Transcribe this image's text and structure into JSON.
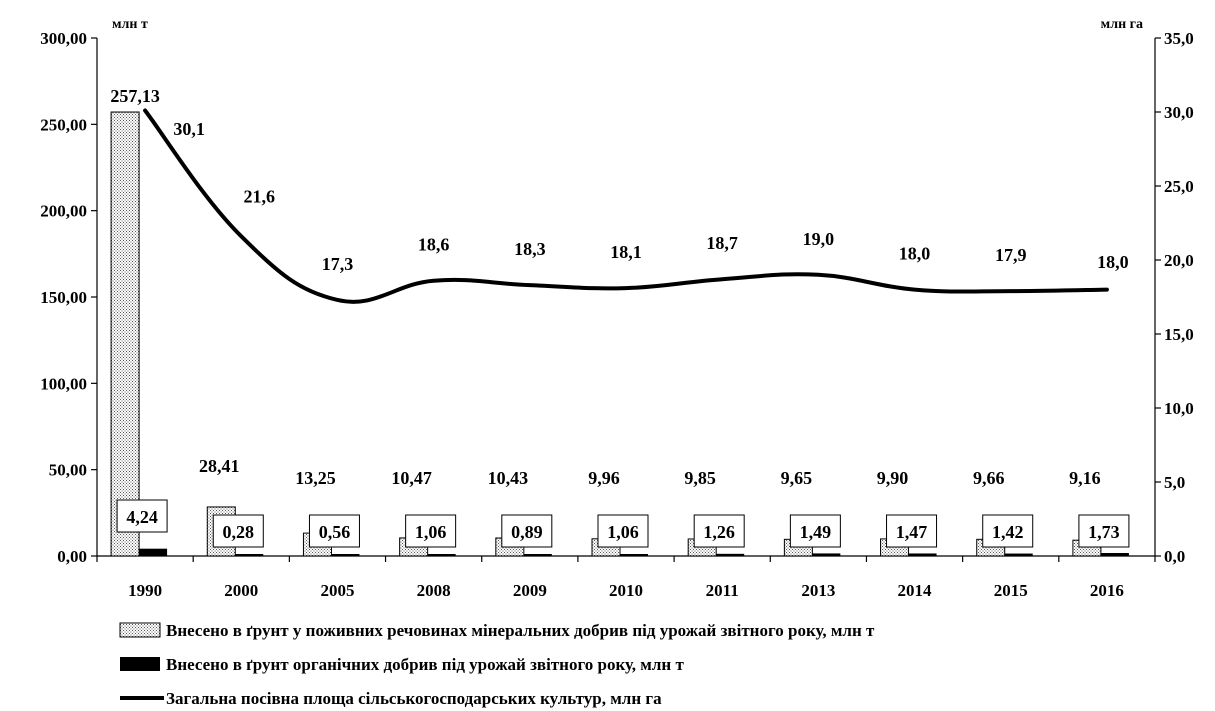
{
  "chart_data": {
    "type": "bar",
    "categories": [
      "1990",
      "2000",
      "2005",
      "2008",
      "2009",
      "2010",
      "2011",
      "2013",
      "2014",
      "2015",
      "2016"
    ],
    "series": [
      {
        "name": "Внесено в ґрунт у поживних речовинах мінеральних добрив під урожай звітного року, млн т",
        "type": "bar",
        "axis": "left",
        "values": [
          257.13,
          28.41,
          13.25,
          10.47,
          10.43,
          9.96,
          9.85,
          9.65,
          9.9,
          9.66,
          9.16
        ],
        "labels": [
          "257,13",
          "28,41",
          "13,25",
          "10,47",
          "10,43",
          "9,96",
          "9,85",
          "9,65",
          "9,90",
          "9,66",
          "9,16"
        ],
        "fill": "dotted"
      },
      {
        "name": "Внесено в ґрунт органічних добрив під урожай звітного року, млн т",
        "type": "bar",
        "axis": "left",
        "values": [
          4.24,
          0.28,
          0.56,
          1.06,
          0.89,
          1.06,
          1.26,
          1.49,
          1.47,
          1.42,
          1.73
        ],
        "labels": [
          "4,24",
          "0,28",
          "0,56",
          "1,06",
          "0,89",
          "1,06",
          "1,26",
          "1,49",
          "1,47",
          "1,42",
          "1,73"
        ],
        "fill": "#000000"
      },
      {
        "name": "Загальна посівна площа сільськогосподарських культур, млн га",
        "type": "line",
        "axis": "right",
        "values": [
          30.1,
          21.6,
          17.3,
          18.6,
          18.3,
          18.1,
          18.7,
          19.0,
          18.0,
          17.9,
          18.0
        ],
        "labels": [
          "30,1",
          "21,6",
          "17,3",
          "18,6",
          "18,3",
          "18,1",
          "18,7",
          "19,0",
          "18,0",
          "17,9",
          "18,0"
        ],
        "color": "#000000"
      }
    ],
    "y_left": {
      "unit": "млн т",
      "range": [
        0,
        300
      ],
      "ticks": [
        0,
        50,
        100,
        150,
        200,
        250,
        300
      ],
      "tick_labels": [
        "0,00",
        "50,00",
        "100,00",
        "150,00",
        "200,00",
        "250,00",
        "300,00"
      ]
    },
    "y_right": {
      "unit": "млн га",
      "range": [
        0,
        35
      ],
      "ticks": [
        0,
        5,
        10,
        15,
        20,
        25,
        30,
        35
      ],
      "tick_labels": [
        "0,0",
        "5,0",
        "10,0",
        "15,0",
        "20,0",
        "25,0",
        "30,0",
        "35,0"
      ]
    },
    "grid": false,
    "legend": "bottom"
  }
}
